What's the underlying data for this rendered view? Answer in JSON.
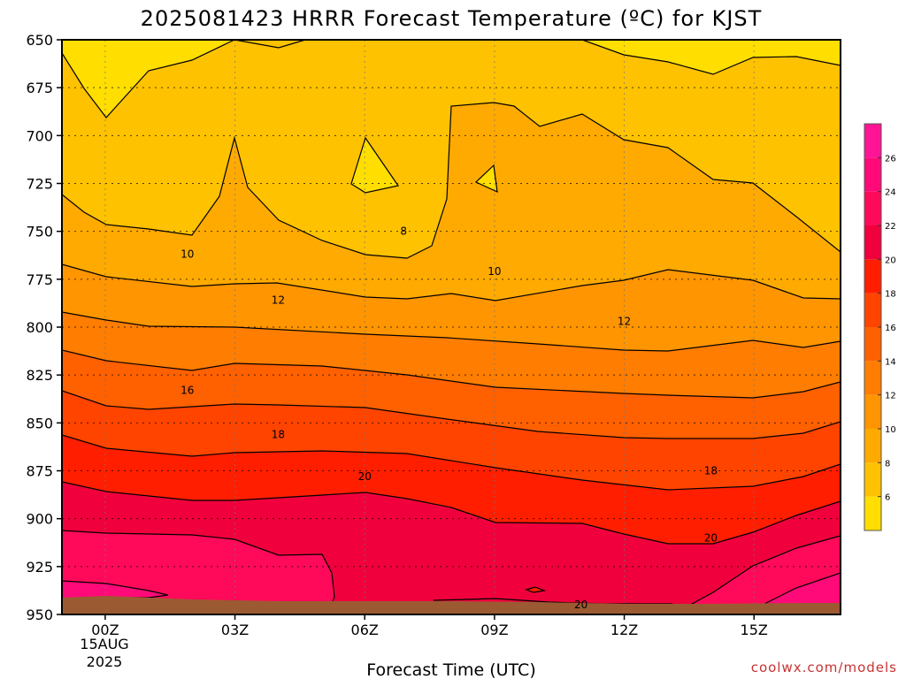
{
  "chart_data": {
    "type": "heatmap",
    "title": "2025081423 HRRR Forecast Temperature (ºC) for KJST",
    "xlabel": "Forecast Time (UTC)",
    "x_ticks": [
      "00Z",
      "03Z",
      "06Z",
      "09Z",
      "12Z",
      "15Z"
    ],
    "x_date_lines": [
      "15AUG",
      "2025"
    ],
    "x_hours": [
      0,
      3,
      6,
      9,
      12,
      15
    ],
    "x_range_hours": [
      -1,
      17
    ],
    "y_ticks": [
      650,
      675,
      700,
      725,
      750,
      775,
      800,
      825,
      850,
      875,
      900,
      925,
      950
    ],
    "y_range": [
      650,
      950
    ],
    "grid": true,
    "contour_interval": 2,
    "contour_labels": [
      {
        "text": "8",
        "hour": 6.9,
        "pressure": 750
      },
      {
        "text": "10",
        "hour": 1.9,
        "pressure": 762
      },
      {
        "text": "10",
        "hour": 9.0,
        "pressure": 771
      },
      {
        "text": "12",
        "hour": 4.0,
        "pressure": 786
      },
      {
        "text": "12",
        "hour": 12.0,
        "pressure": 797
      },
      {
        "text": "16",
        "hour": 1.9,
        "pressure": 833
      },
      {
        "text": "18",
        "hour": 4.0,
        "pressure": 856
      },
      {
        "text": "18",
        "hour": 14.0,
        "pressure": 875
      },
      {
        "text": "20",
        "hour": 6.0,
        "pressure": 878
      },
      {
        "text": "20",
        "hour": 14.0,
        "pressure": 910
      },
      {
        "text": "20",
        "hour": 11.0,
        "pressure": 945
      }
    ],
    "colorbar": {
      "ticks": [
        6,
        8,
        10,
        12,
        14,
        16,
        18,
        20,
        22,
        24,
        26
      ],
      "range": [
        4,
        28
      ],
      "colors": [
        "#ffde00",
        "#ffc200",
        "#ffaa00",
        "#ff9500",
        "#ff7d00",
        "#ff6000",
        "#ff4400",
        "#ff1e00",
        "#f0003c",
        "#ff0a5a",
        "#ff0a78",
        "#ff1496"
      ]
    },
    "terrain_color": "#9c5a32",
    "line_color": "#000000"
  },
  "credit": "coolwx.com/models"
}
